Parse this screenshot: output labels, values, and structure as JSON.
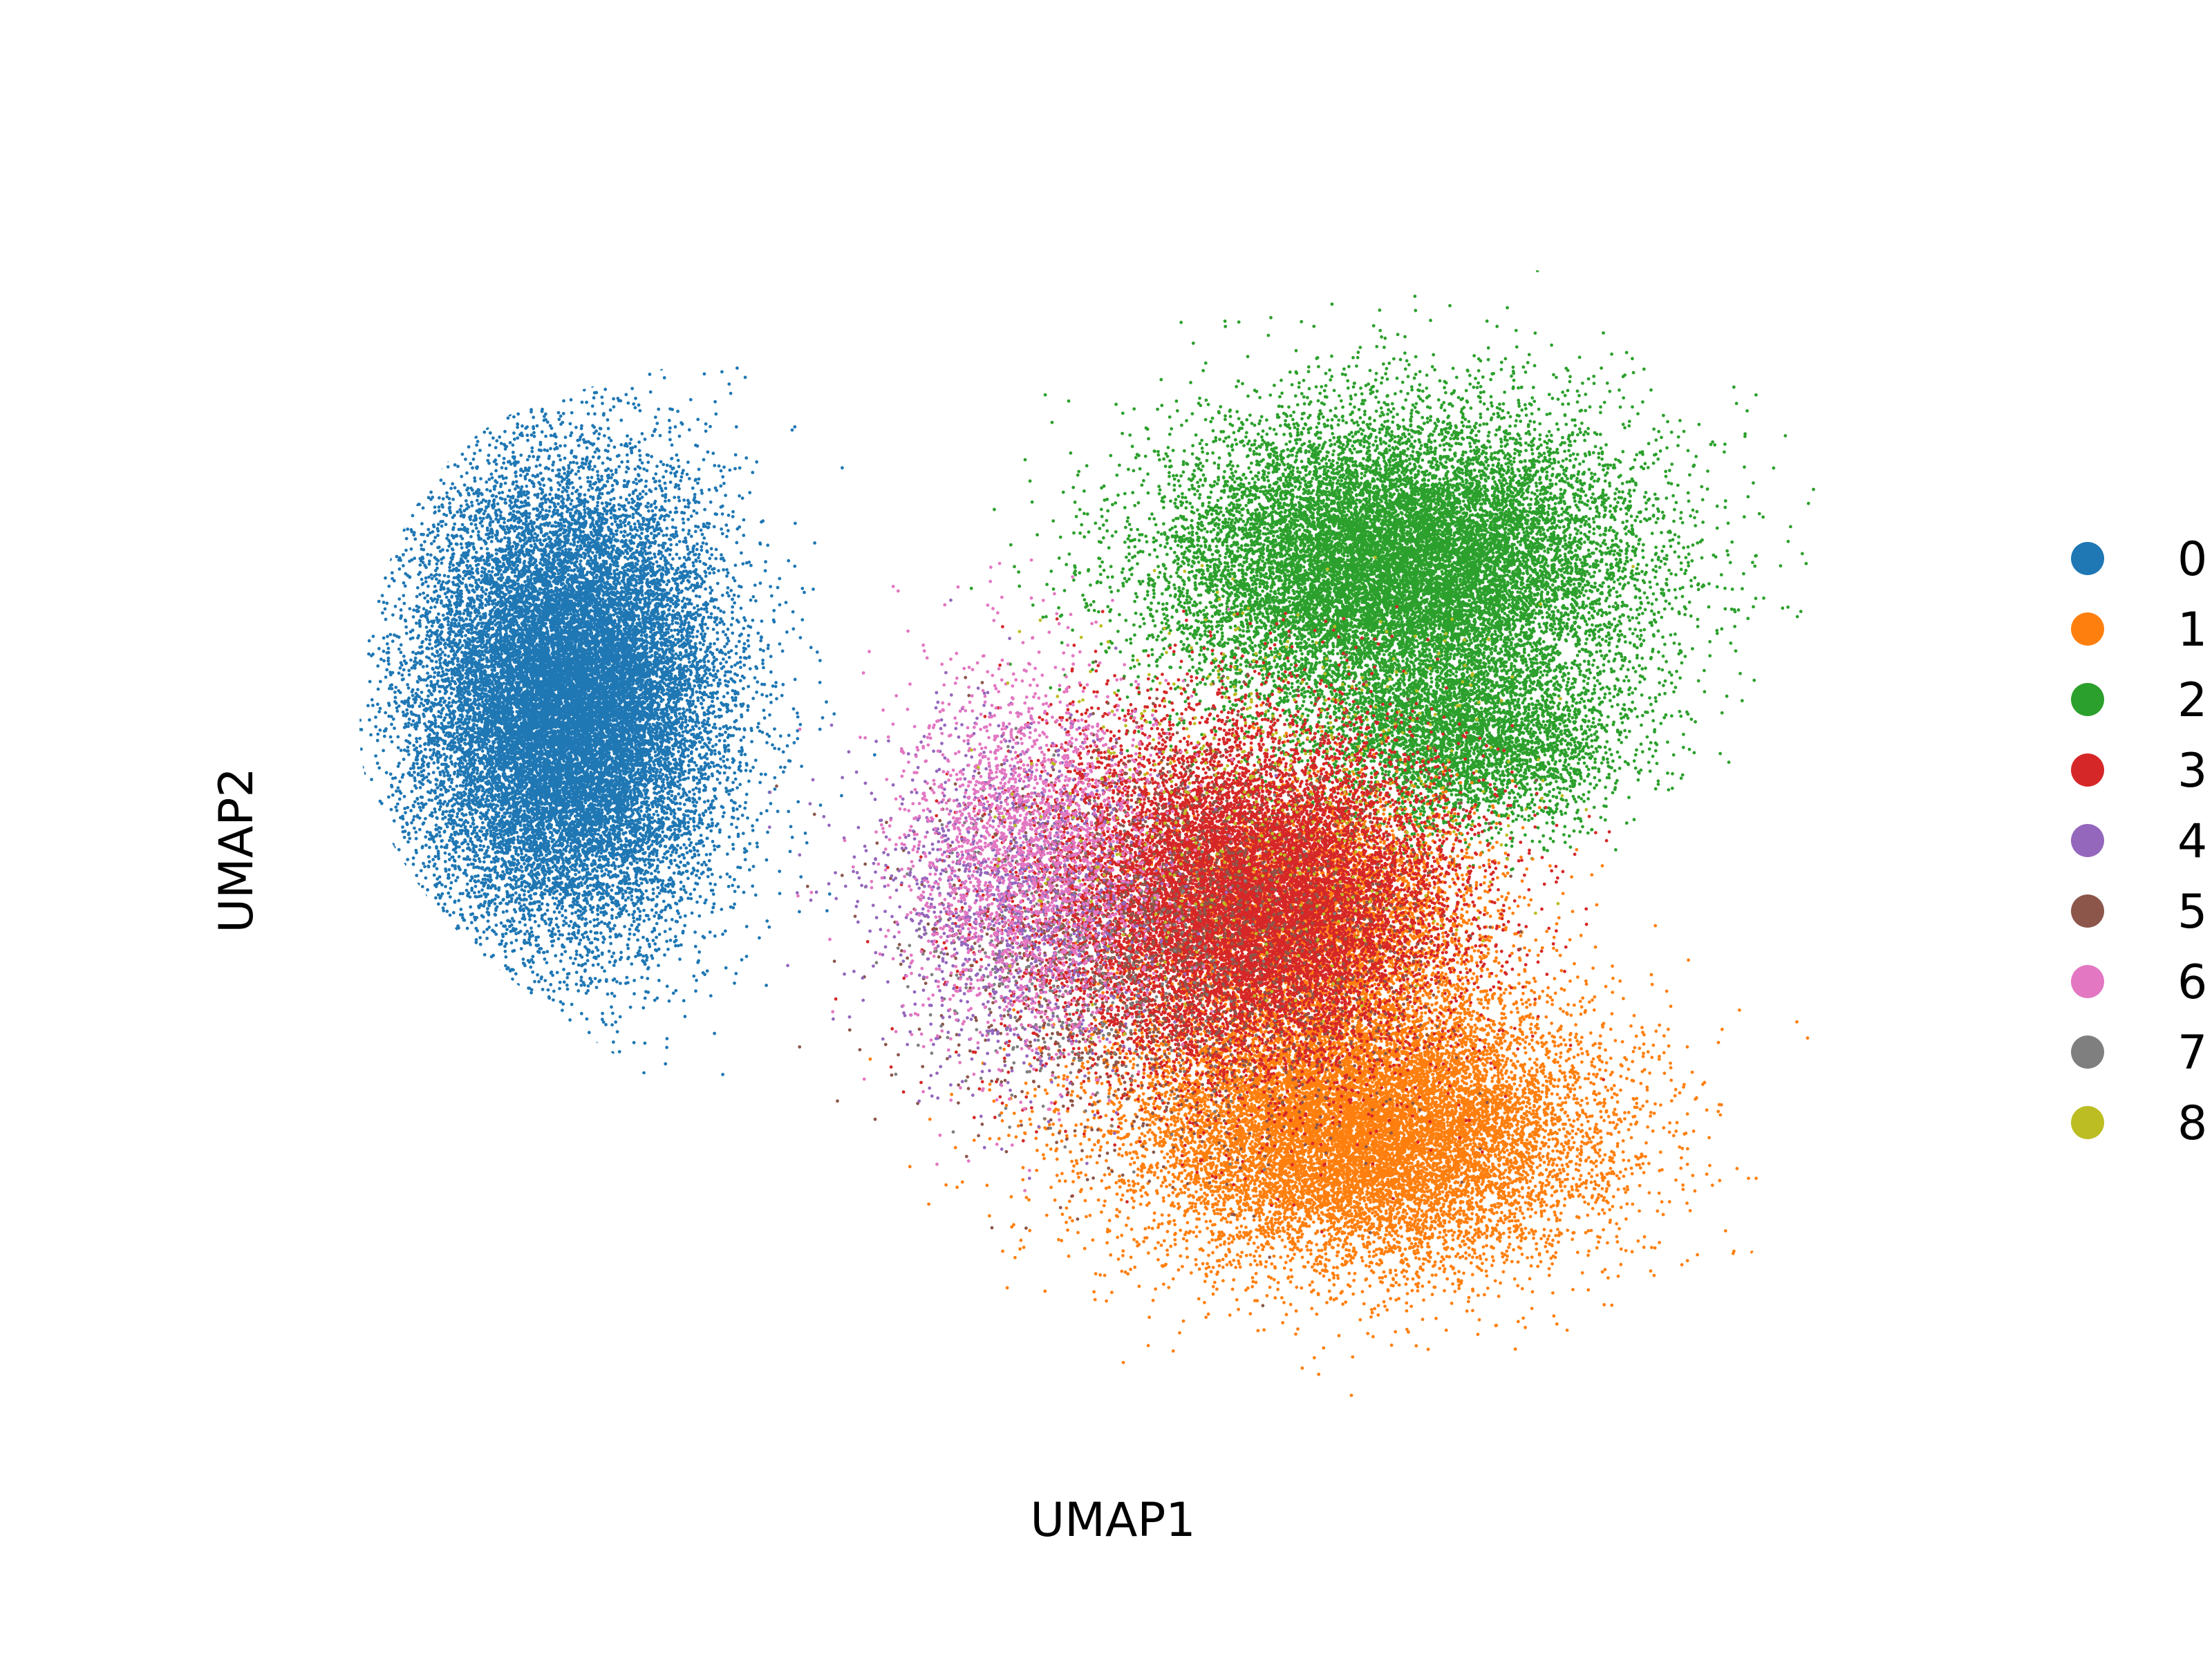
{
  "chart_data": {
    "type": "scatter",
    "title": "",
    "xlabel": "UMAP1",
    "ylabel": "UMAP2",
    "xlim": [
      -8,
      8
    ],
    "ylim": [
      -6,
      6
    ],
    "grid": false,
    "legend_placement": "right",
    "series": [
      {
        "name": "0",
        "color": "#1f77b4",
        "n": 22000,
        "regions": [
          {
            "cx": -5.7,
            "cy": 1.4,
            "sx": 1.4,
            "sy": 2.1,
            "w": 1.0
          }
        ]
      },
      {
        "name": "1",
        "color": "#ff7f0e",
        "n": 19000,
        "regions": [
          {
            "cx": 2.4,
            "cy": -2.9,
            "sx": 2.2,
            "sy": 1.3,
            "w": 0.75
          },
          {
            "cx": 2.0,
            "cy": -0.8,
            "sx": 1.5,
            "sy": 1.1,
            "w": 0.25
          }
        ]
      },
      {
        "name": "2",
        "color": "#2ca02c",
        "n": 20000,
        "regions": [
          {
            "cx": 2.8,
            "cy": 2.8,
            "sx": 2.2,
            "sy": 1.4,
            "w": 0.82
          },
          {
            "cx": 3.5,
            "cy": 1.0,
            "sx": 1.4,
            "sy": 0.8,
            "w": 0.18
          }
        ]
      },
      {
        "name": "3",
        "color": "#d62728",
        "n": 14000,
        "regions": [
          {
            "cx": 1.2,
            "cy": -0.6,
            "sx": 1.9,
            "sy": 1.6,
            "w": 1.0
          }
        ]
      },
      {
        "name": "4",
        "color": "#9467bd",
        "n": 1300,
        "regions": [
          {
            "cx": -1.2,
            "cy": -0.6,
            "sx": 1.3,
            "sy": 1.6,
            "w": 1.0
          }
        ]
      },
      {
        "name": "5",
        "color": "#8c564b",
        "n": 2000,
        "regions": [
          {
            "cx": 0.5,
            "cy": -1.0,
            "sx": 2.2,
            "sy": 1.9,
            "w": 1.0
          }
        ]
      },
      {
        "name": "6",
        "color": "#e377c2",
        "n": 2400,
        "regions": [
          {
            "cx": -1.0,
            "cy": -0.2,
            "sx": 1.2,
            "sy": 1.8,
            "w": 1.0
          }
        ]
      },
      {
        "name": "7",
        "color": "#7f7f7f",
        "n": 500,
        "regions": [
          {
            "cx": -0.5,
            "cy": -1.2,
            "sx": 1.6,
            "sy": 1.4,
            "w": 1.0
          }
        ]
      },
      {
        "name": "8",
        "color": "#bcbd22",
        "n": 500,
        "regions": [
          {
            "cx": 1.5,
            "cy": 0.5,
            "sx": 2.2,
            "sy": 1.8,
            "w": 1.0
          }
        ]
      }
    ]
  }
}
